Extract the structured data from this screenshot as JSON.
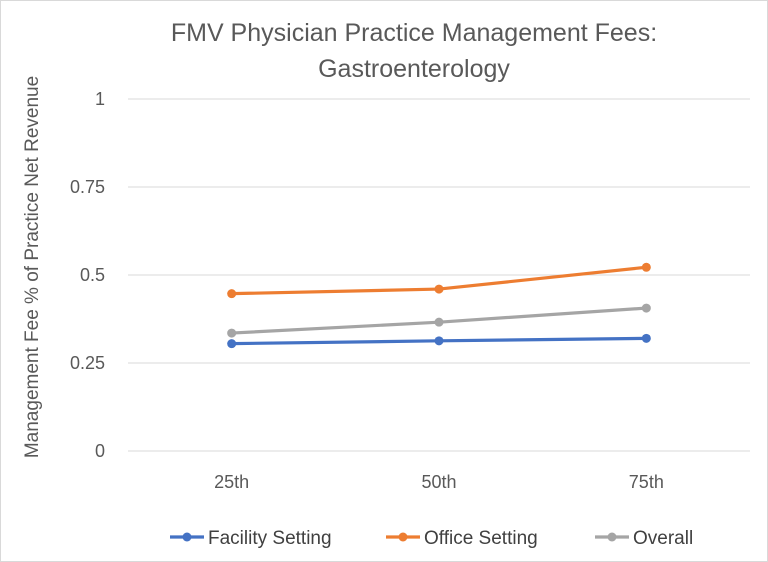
{
  "chart_data": {
    "type": "line",
    "title_lines": [
      "FMV Physician Practice Management Fees:",
      "Gastroenterology"
    ],
    "xlabel": "",
    "ylabel": "Management Fee % of Practice Net Revenue",
    "categories": [
      "25th",
      "50th",
      "75th"
    ],
    "ylim": [
      0,
      1
    ],
    "yticks": [
      0,
      0.25,
      0.5,
      0.75,
      1
    ],
    "ytick_labels": [
      "0",
      "0.25",
      "0.5",
      "0.75",
      "1"
    ],
    "grid": true,
    "legend_position": "bottom",
    "series": [
      {
        "name": "Facility Setting",
        "color": "#4472C4",
        "values": [
          0.305,
          0.313,
          0.32
        ]
      },
      {
        "name": "Office Setting",
        "color": "#ED7D31",
        "values": [
          0.447,
          0.46,
          0.522
        ]
      },
      {
        "name": "Overall",
        "color": "#A5A5A5",
        "values": [
          0.335,
          0.366,
          0.406
        ]
      }
    ]
  }
}
